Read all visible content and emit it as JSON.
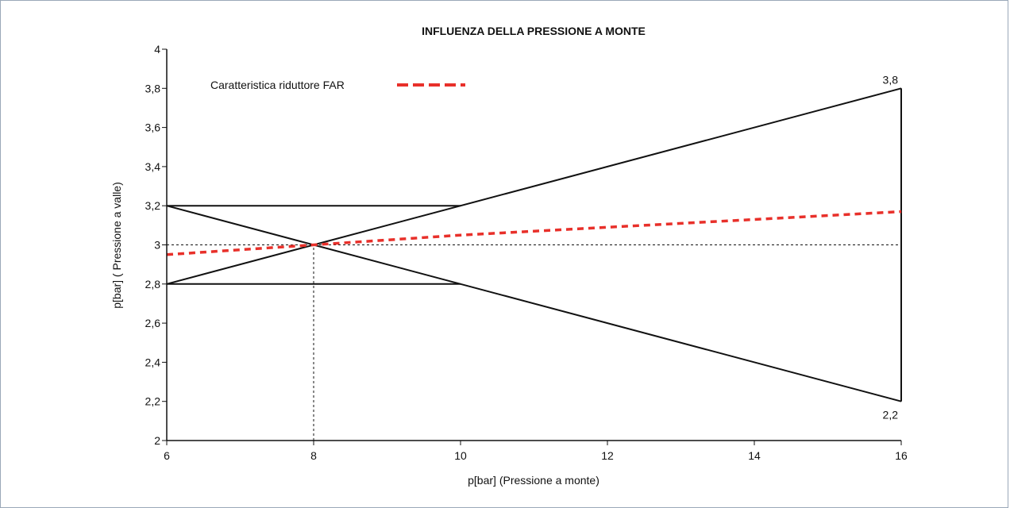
{
  "chart_data": {
    "type": "line",
    "title": "INFLUENZA DELLA PRESSIONE A MONTE",
    "xlabel": "p[bar] (Pressione a monte)",
    "ylabel": "p[bar] ( Pressione a valle)",
    "xlim": [
      6,
      16
    ],
    "ylim": [
      2,
      4
    ],
    "x_ticks": [
      6,
      8,
      10,
      12,
      14,
      16
    ],
    "x_tick_labels": [
      "6",
      "8",
      "10",
      "12",
      "14",
      "16"
    ],
    "y_ticks": [
      2,
      2.2,
      2.4,
      2.6,
      2.8,
      3,
      3.2,
      3.4,
      3.6,
      3.8,
      4
    ],
    "y_tick_labels": [
      "2",
      "2,2",
      "2,4",
      "2,6",
      "2,8",
      "3",
      "3,2",
      "3,4",
      "3,6",
      "3,8",
      "4"
    ],
    "grid": false,
    "legend": {
      "position": "top-left",
      "entries": [
        "Caratteristica riduttore FAR"
      ]
    },
    "series": [
      {
        "name": "Caratteristica riduttore FAR",
        "color": "#e8302a",
        "style": "dashed",
        "points": [
          [
            6,
            2.95
          ],
          [
            8,
            3.0
          ],
          [
            10,
            3.05
          ],
          [
            12,
            3.09
          ],
          [
            14,
            3.13
          ],
          [
            16,
            3.17
          ]
        ]
      }
    ],
    "envelope_lines": [
      {
        "style": "solid",
        "color": "#111111",
        "points": [
          [
            6,
            2.8
          ],
          [
            8,
            3.0
          ],
          [
            16,
            3.8
          ]
        ]
      },
      {
        "style": "solid",
        "color": "#111111",
        "points": [
          [
            6,
            3.2
          ],
          [
            8,
            3.0
          ],
          [
            16,
            2.2
          ]
        ]
      },
      {
        "style": "solid",
        "color": "#111111",
        "points": [
          [
            6,
            3.2
          ],
          [
            10,
            3.2
          ]
        ]
      },
      {
        "style": "solid",
        "color": "#111111",
        "points": [
          [
            6,
            2.8
          ],
          [
            10,
            2.8
          ]
        ]
      },
      {
        "style": "solid",
        "color": "#111111",
        "points": [
          [
            16,
            2.2
          ],
          [
            16,
            3.8
          ]
        ]
      }
    ],
    "reference_lines": [
      {
        "style": "dotted",
        "color": "#111111",
        "points": [
          [
            6,
            3.0
          ],
          [
            16,
            3.0
          ]
        ]
      },
      {
        "style": "dotted",
        "color": "#111111",
        "points": [
          [
            8,
            2.0
          ],
          [
            8,
            3.0
          ]
        ]
      }
    ],
    "annotations": [
      {
        "text": "3,8",
        "x": 16,
        "y": 3.8,
        "anchor": "above-left"
      },
      {
        "text": "2,2",
        "x": 16,
        "y": 2.2,
        "anchor": "below-left"
      }
    ]
  }
}
